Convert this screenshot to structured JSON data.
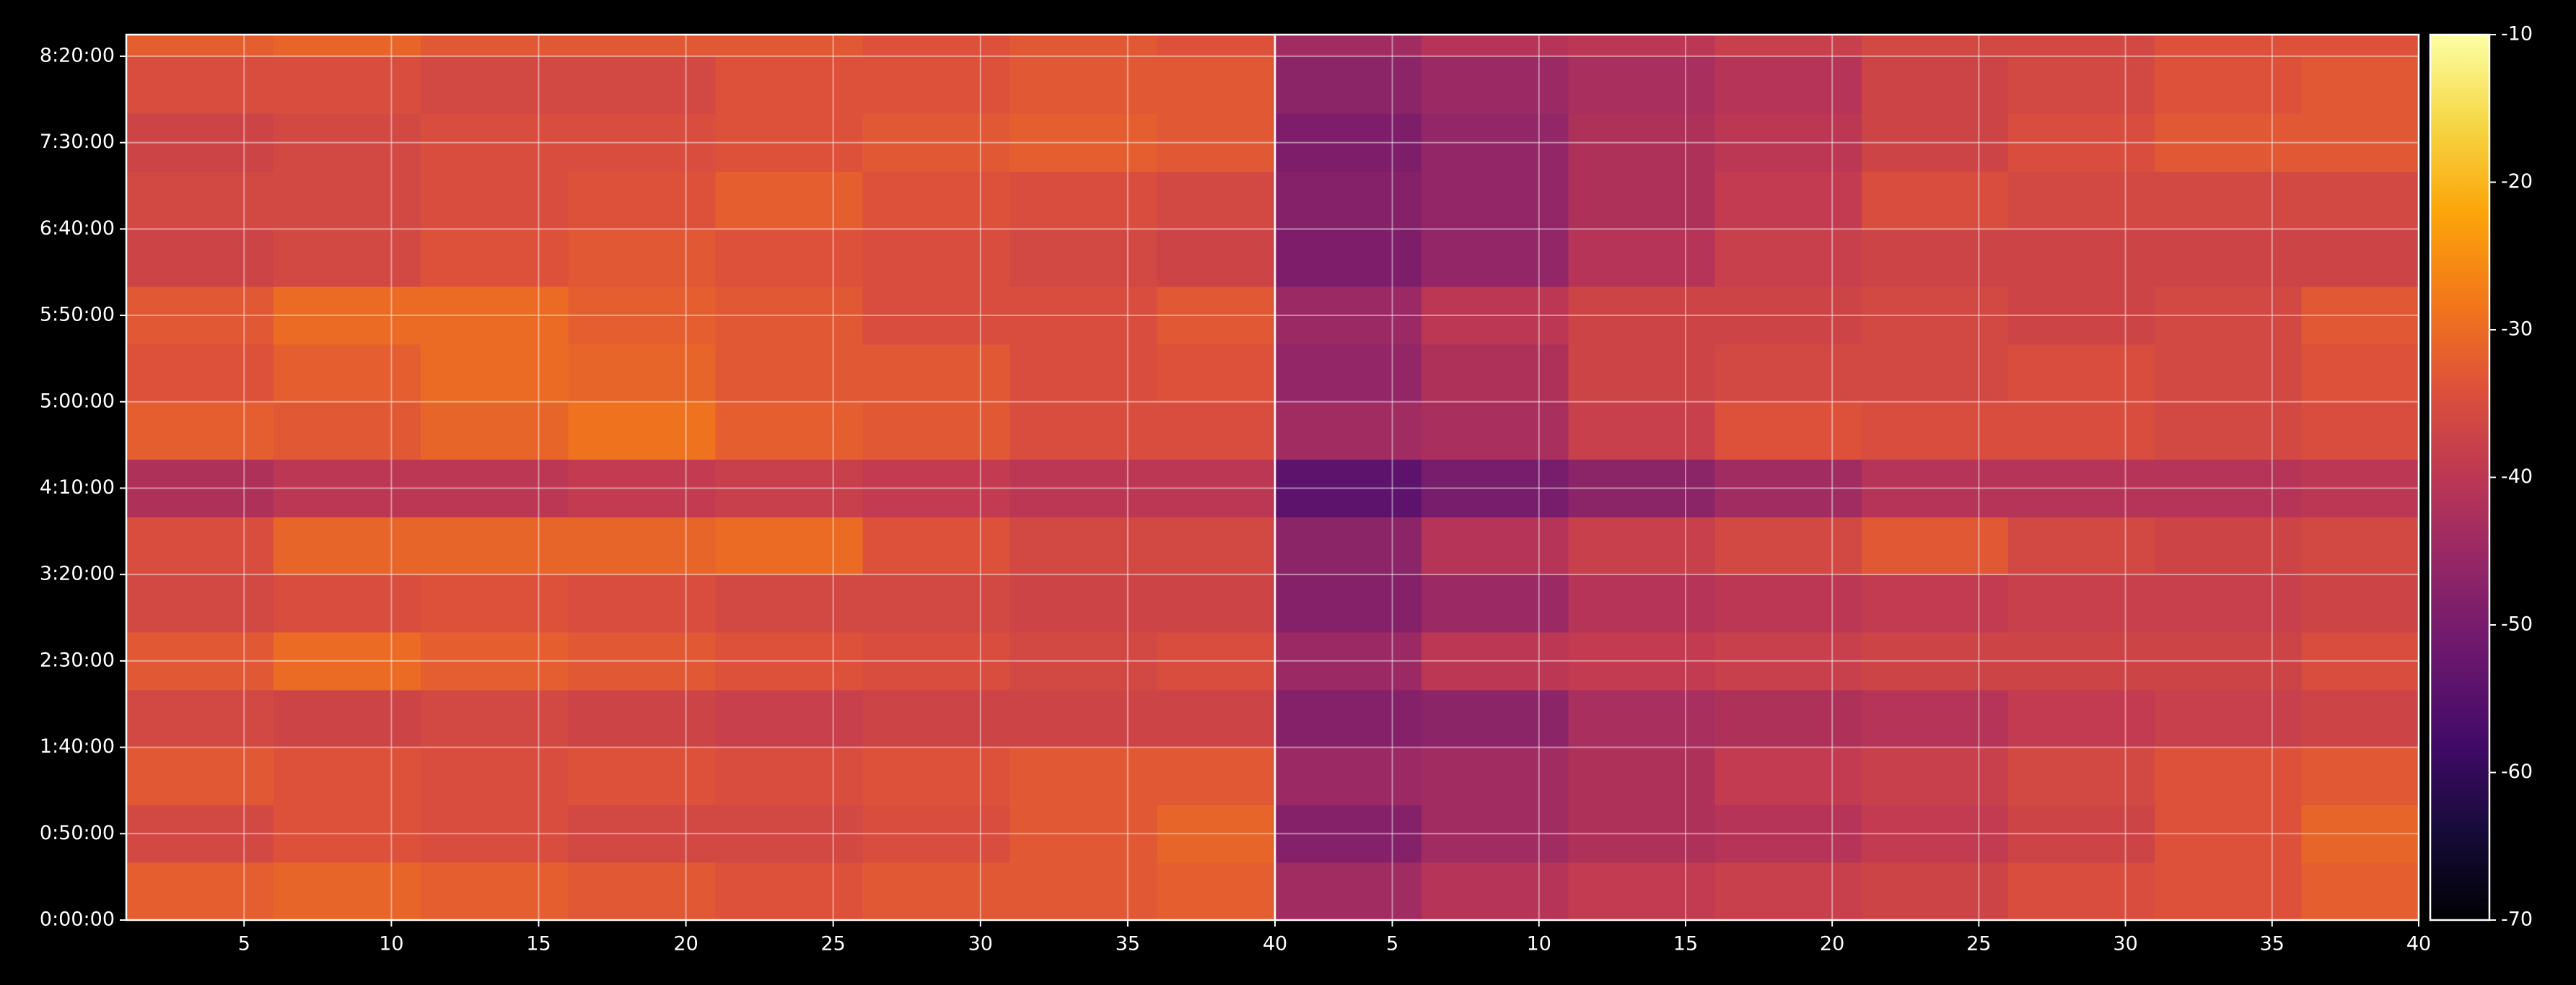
{
  "chart_data": [
    {
      "type": "heatmap",
      "xlim": [
        1,
        40
      ],
      "ylim": [
        0,
        30750
      ],
      "grid": true,
      "xbins": [
        1,
        6,
        11,
        16,
        21,
        26,
        31,
        36,
        40
      ],
      "ybins": [
        0,
        2000,
        4000,
        6000,
        8000,
        10000,
        12000,
        14000,
        16000,
        18000,
        20000,
        22000,
        24000,
        26000,
        28000,
        30000,
        30750
      ],
      "xticks": [
        5,
        10,
        15,
        20,
        25,
        30,
        35,
        40
      ],
      "yticks": [
        {
          "value": 0,
          "label": "0:00:00"
        },
        {
          "value": 3000,
          "label": "0:50:00"
        },
        {
          "value": 6000,
          "label": "1:40:00"
        },
        {
          "value": 9000,
          "label": "2:30:00"
        },
        {
          "value": 12000,
          "label": "3:20:00"
        },
        {
          "value": 15000,
          "label": "4:10:00"
        },
        {
          "value": 18000,
          "label": "5:00:00"
        },
        {
          "value": 21000,
          "label": "5:50:00"
        },
        {
          "value": 24000,
          "label": "6:40:00"
        },
        {
          "value": 27000,
          "label": "7:30:00"
        },
        {
          "value": 30000,
          "label": "8:20:00"
        }
      ],
      "values": [
        [
          -32,
          -31,
          -32,
          -33,
          -34,
          -33,
          -33,
          -32
        ],
        [
          -36,
          -34,
          -35,
          -36,
          -36,
          -35,
          -33,
          -31
        ],
        [
          -33,
          -34,
          -35,
          -34,
          -35,
          -34,
          -33,
          -33
        ],
        [
          -36,
          -37,
          -36,
          -37,
          -38,
          -37,
          -37,
          -37
        ],
        [
          -33,
          -30,
          -32,
          -33,
          -34,
          -35,
          -36,
          -35
        ],
        [
          -36,
          -35,
          -34,
          -35,
          -36,
          -36,
          -37,
          -37
        ],
        [
          -35,
          -31,
          -31,
          -31,
          -30,
          -34,
          -36,
          -36
        ],
        [
          -42,
          -40,
          -40,
          -39,
          -38,
          -39,
          -40,
          -40
        ],
        [
          -32,
          -33,
          -31,
          -29,
          -32,
          -33,
          -35,
          -35
        ],
        [
          -34,
          -32,
          -30,
          -31,
          -33,
          -33,
          -35,
          -34
        ],
        [
          -33,
          -30,
          -30,
          -32,
          -33,
          -35,
          -35,
          -33
        ],
        [
          -37,
          -36,
          -34,
          -33,
          -34,
          -35,
          -36,
          -37
        ],
        [
          -36,
          -36,
          -35,
          -34,
          -32,
          -34,
          -35,
          -36
        ],
        [
          -37,
          -36,
          -35,
          -35,
          -34,
          -33,
          -32,
          -33
        ],
        [
          -35,
          -35,
          -36,
          -36,
          -34,
          -34,
          -33,
          -33
        ],
        [
          -32,
          -31,
          -33,
          -33,
          -33,
          -34,
          -33,
          -34
        ]
      ]
    },
    {
      "type": "heatmap",
      "xlim": [
        1,
        40
      ],
      "ylim": [
        0,
        30750
      ],
      "grid": true,
      "sharey": true,
      "xbins": [
        1,
        6,
        11,
        16,
        21,
        26,
        31,
        36,
        40
      ],
      "ybins": [
        0,
        2000,
        4000,
        6000,
        8000,
        10000,
        12000,
        14000,
        16000,
        18000,
        20000,
        22000,
        24000,
        26000,
        28000,
        30000,
        30750
      ],
      "xticks": [
        5,
        10,
        15,
        20,
        25,
        30,
        35,
        40
      ],
      "values": [
        [
          -44,
          -41,
          -39,
          -38,
          -37,
          -35,
          -34,
          -32
        ],
        [
          -48,
          -44,
          -42,
          -41,
          -39,
          -37,
          -34,
          -31
        ],
        [
          -45,
          -44,
          -42,
          -39,
          -38,
          -36,
          -34,
          -33
        ],
        [
          -48,
          -47,
          -43,
          -42,
          -41,
          -39,
          -38,
          -37
        ],
        [
          -45,
          -40,
          -39,
          -38,
          -37,
          -37,
          -37,
          -35
        ],
        [
          -48,
          -45,
          -41,
          -40,
          -39,
          -38,
          -38,
          -37
        ],
        [
          -47,
          -41,
          -38,
          -36,
          -33,
          -36,
          -37,
          -36
        ],
        [
          -54,
          -50,
          -47,
          -44,
          -41,
          -41,
          -41,
          -40
        ],
        [
          -44,
          -43,
          -38,
          -34,
          -35,
          -35,
          -36,
          -35
        ],
        [
          -46,
          -42,
          -37,
          -36,
          -36,
          -35,
          -36,
          -34
        ],
        [
          -45,
          -40,
          -37,
          -37,
          -36,
          -37,
          -36,
          -33
        ],
        [
          -49,
          -46,
          -41,
          -38,
          -37,
          -37,
          -37,
          -37
        ],
        [
          -48,
          -46,
          -42,
          -39,
          -35,
          -36,
          -36,
          -36
        ],
        [
          -49,
          -46,
          -42,
          -40,
          -37,
          -35,
          -33,
          -33
        ],
        [
          -47,
          -45,
          -43,
          -41,
          -37,
          -36,
          -34,
          -33
        ],
        [
          -44,
          -41,
          -40,
          -38,
          -36,
          -36,
          -34,
          -34
        ]
      ]
    }
  ],
  "colorbar": {
    "colormap": "inferno",
    "lim": [
      -70,
      -10
    ],
    "ticks": [
      -70,
      -60,
      -50,
      -40,
      -30,
      -20,
      -10
    ]
  }
}
